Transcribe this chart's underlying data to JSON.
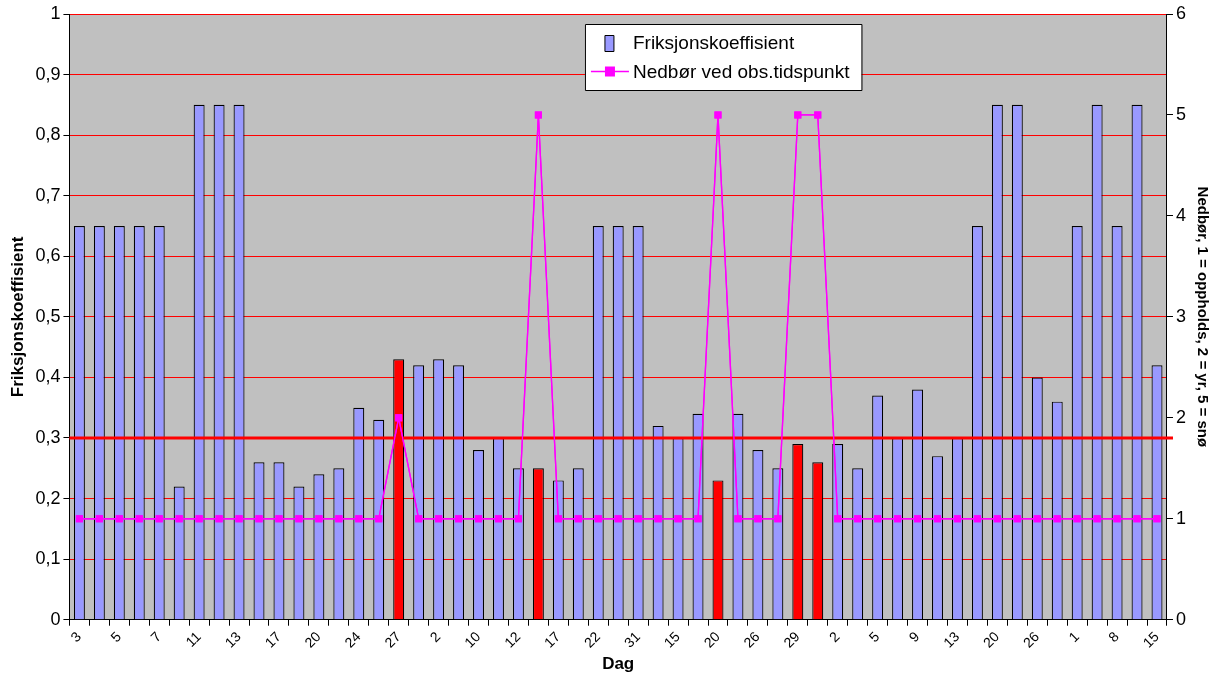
{
  "chart_data": {
    "type": "bar",
    "xlabel": "Dag",
    "ylabel": "Friksjonskoeffisient",
    "y2label": "Nedbør, 1 = oppholds, 2 = yr, 5 = snø",
    "categories": [
      "3",
      null,
      "5",
      null,
      "7",
      null,
      "11",
      null,
      "13",
      null,
      "17",
      null,
      "20",
      null,
      "24",
      null,
      "27",
      null,
      "2",
      null,
      "10",
      null,
      "12",
      null,
      "17",
      null,
      "22",
      null,
      "31",
      null,
      "15",
      null,
      "20",
      null,
      "26",
      null,
      "29",
      null,
      "2",
      null,
      "5",
      null,
      "9",
      null,
      "13",
      null,
      "20",
      null,
      "26",
      null,
      "1",
      null,
      "8",
      null,
      "15"
    ],
    "series": [
      {
        "name": "Friksjonskoeffisient",
        "color": "#9999ff",
        "values": [
          0.65,
          0.65,
          0.65,
          0.65,
          0.65,
          0.22,
          0.85,
          0.85,
          0.85,
          0.26,
          0.26,
          0.22,
          0.24,
          0.25,
          0.35,
          0.33,
          0.43,
          0.42,
          0.43,
          0.42,
          0.28,
          0.3,
          0.25,
          0.25,
          0.23,
          0.25,
          0.65,
          0.65,
          0.65,
          0.32,
          0.3,
          0.34,
          0.23,
          0.34,
          0.28,
          0.25,
          0.29,
          0.26,
          0.29,
          0.25,
          0.37,
          0.3,
          0.38,
          0.27,
          0.3,
          0.65,
          0.85,
          0.85,
          0.4,
          0.36,
          0.65,
          0.85,
          0.65,
          0.85,
          0.42
        ],
        "colors": [
          "#9999ff",
          "#9999ff",
          "#9999ff",
          "#9999ff",
          "#9999ff",
          "#9999ff",
          "#9999ff",
          "#9999ff",
          "#9999ff",
          "#9999ff",
          "#9999ff",
          "#9999ff",
          "#9999ff",
          "#9999ff",
          "#9999ff",
          "#9999ff",
          "#ff0000",
          "#9999ff",
          "#9999ff",
          "#9999ff",
          "#9999ff",
          "#9999ff",
          "#9999ff",
          "#ff0000",
          "#9999ff",
          "#9999ff",
          "#9999ff",
          "#9999ff",
          "#9999ff",
          "#9999ff",
          "#9999ff",
          "#9999ff",
          "#ff0000",
          "#9999ff",
          "#9999ff",
          "#9999ff",
          "#ff0000",
          "#ff0000",
          "#9999ff",
          "#9999ff",
          "#9999ff",
          "#9999ff",
          "#9999ff",
          "#9999ff",
          "#9999ff",
          "#9999ff",
          "#9999ff",
          "#9999ff",
          "#9999ff",
          "#9999ff",
          "#9999ff",
          "#9999ff",
          "#9999ff",
          "#9999ff",
          "#9999ff"
        ]
      },
      {
        "name": "Nedbør ved obs.tidspunkt",
        "type": "line",
        "axis": "y2",
        "color": "#ff00ff",
        "marker": "square",
        "values": [
          1,
          1,
          1,
          1,
          1,
          1,
          1,
          1,
          1,
          1,
          1,
          1,
          1,
          1,
          1,
          1,
          2,
          1,
          1,
          1,
          1,
          1,
          1,
          5,
          1,
          1,
          1,
          1,
          1,
          1,
          1,
          1,
          5,
          1,
          1,
          1,
          5,
          5,
          1,
          1,
          1,
          1,
          1,
          1,
          1,
          1,
          1,
          1,
          1,
          1,
          1,
          1,
          1,
          1,
          1
        ]
      }
    ],
    "ylim": [
      0,
      1
    ],
    "yticks": [
      0,
      {
        "value": 0.1,
        "label": "0,1"
      },
      {
        "value": 0.2,
        "label": "0,2"
      },
      {
        "value": 0.3,
        "label": "0,3"
      },
      {
        "value": 0.4,
        "label": "0,4"
      },
      {
        "value": 0.5,
        "label": "0,5"
      },
      {
        "value": 0.6,
        "label": "0,6"
      },
      {
        "value": 0.7,
        "label": "0,7"
      },
      {
        "value": 0.8,
        "label": "0,8"
      },
      {
        "value": 0.9,
        "label": "0,9"
      },
      1
    ],
    "y2lim": [
      0,
      6
    ],
    "y2ticks": [
      0,
      1,
      2,
      3,
      4,
      5,
      6
    ],
    "ref_lines": [
      {
        "axis": "y",
        "value": 0.3,
        "color": "#ff0000"
      }
    ],
    "grid": "y",
    "legend": "top"
  }
}
